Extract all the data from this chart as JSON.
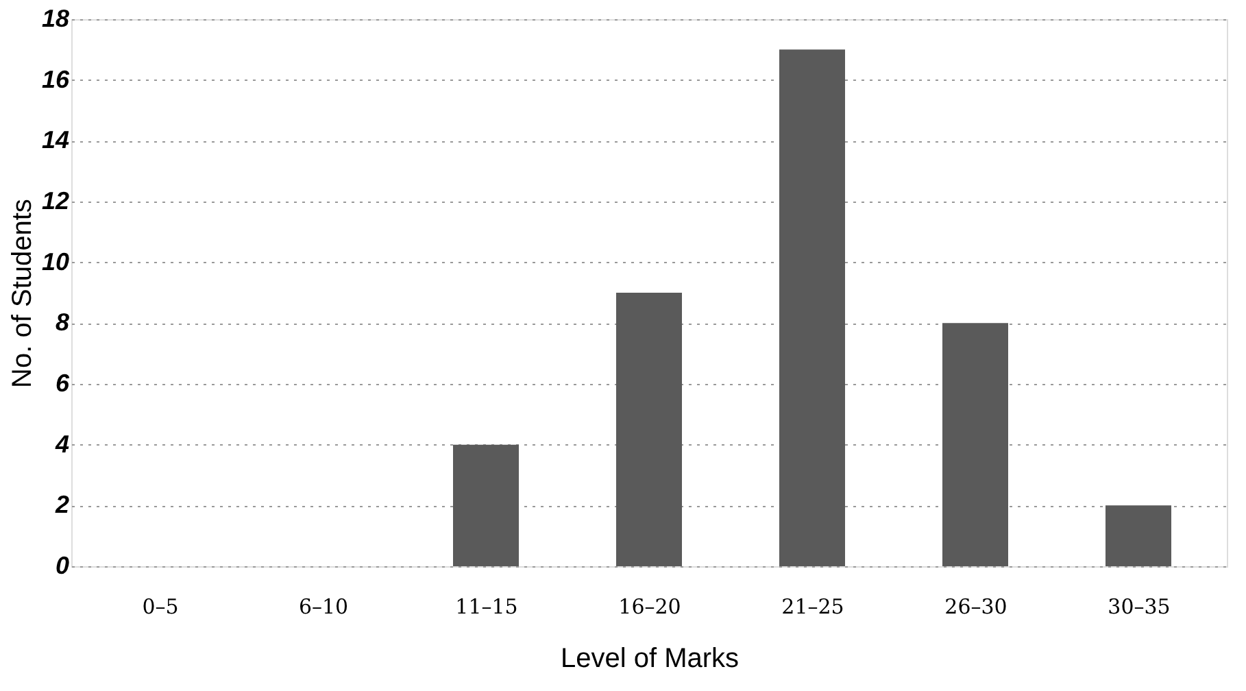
{
  "chart_data": {
    "type": "bar",
    "xlabel": "Level of Marks",
    "ylabel": "No. of Students",
    "categories": [
      "0–5",
      "6–10",
      "11–15",
      "16–20",
      "21–25",
      "26–30",
      "30–35"
    ],
    "values": [
      0,
      0,
      4,
      9,
      17,
      8,
      2
    ],
    "color": "#5a5a5a",
    "ylim": [
      0,
      18
    ],
    "yticks": [
      0,
      2,
      4,
      6,
      8,
      10,
      12,
      14,
      16,
      18
    ],
    "grid": "y"
  }
}
